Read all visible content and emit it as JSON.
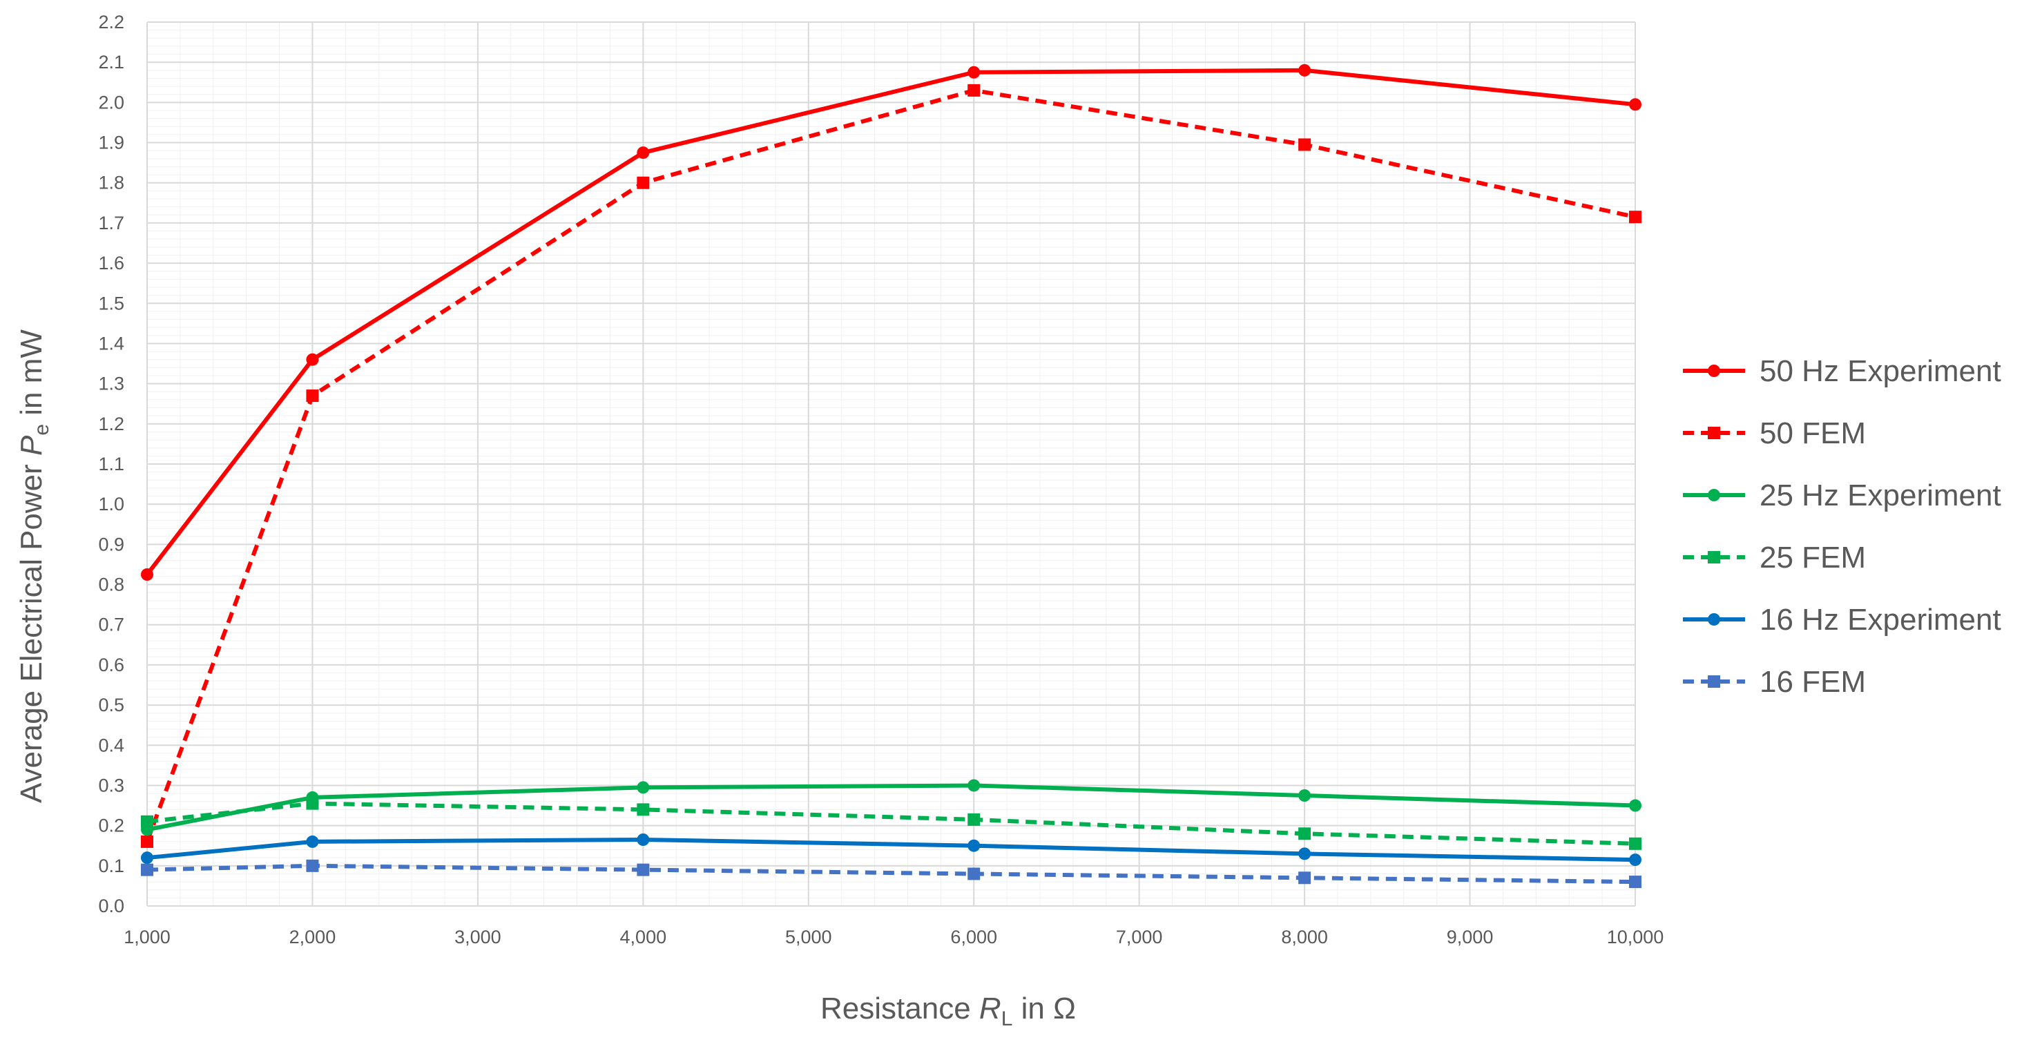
{
  "chart_data": {
    "type": "line",
    "title": "",
    "xlabel": {
      "pre": "Resistance ",
      "var": "R",
      "sub": "L",
      "post": " in Ω"
    },
    "ylabel": {
      "pre": "Average Electrical Power ",
      "var": "P",
      "sub": "e",
      "post": " in mW"
    },
    "xlim": [
      1000,
      10000
    ],
    "ylim": [
      0,
      2.2
    ],
    "x_ticks": [
      "1,000",
      "2,000",
      "3,000",
      "4,000",
      "5,000",
      "6,000",
      "7,000",
      "8,000",
      "9,000",
      "10,000"
    ],
    "y_ticks": [
      "0.0",
      "0.1",
      "0.2",
      "0.3",
      "0.4",
      "0.5",
      "0.6",
      "0.7",
      "0.8",
      "0.9",
      "1.0",
      "1.1",
      "1.2",
      "1.3",
      "1.4",
      "1.5",
      "1.6",
      "1.7",
      "1.8",
      "1.9",
      "2.0",
      "2.1",
      "2.2"
    ],
    "grid": true,
    "legend_position": "right",
    "x": [
      1000,
      2000,
      4000,
      6000,
      8000,
      10000
    ],
    "series": [
      {
        "name": "50 Hz Experiment",
        "values": [
          0.825,
          1.36,
          1.875,
          2.075,
          2.08,
          1.995
        ],
        "color": "#ff0000",
        "style": "solid",
        "marker": "circle"
      },
      {
        "name": "50 FEM",
        "values": [
          0.16,
          1.27,
          1.8,
          2.03,
          1.895,
          1.715
        ],
        "color": "#ff0000",
        "style": "dashed",
        "marker": "square"
      },
      {
        "name": "25 Hz Experiment",
        "values": [
          0.19,
          0.27,
          0.295,
          0.3,
          0.275,
          0.25
        ],
        "color": "#00b050",
        "style": "solid",
        "marker": "circle"
      },
      {
        "name": "25 FEM",
        "values": [
          0.21,
          0.255,
          0.24,
          0.215,
          0.18,
          0.155
        ],
        "color": "#00b050",
        "style": "dashed",
        "marker": "square"
      },
      {
        "name": "16 Hz Experiment",
        "values": [
          0.12,
          0.16,
          0.165,
          0.15,
          0.13,
          0.115
        ],
        "color": "#0070c0",
        "style": "solid",
        "marker": "circle"
      },
      {
        "name": "16 FEM",
        "values": [
          0.09,
          0.1,
          0.09,
          0.08,
          0.07,
          0.06
        ],
        "color": "#4472c4",
        "style": "dashed",
        "marker": "square"
      }
    ]
  }
}
